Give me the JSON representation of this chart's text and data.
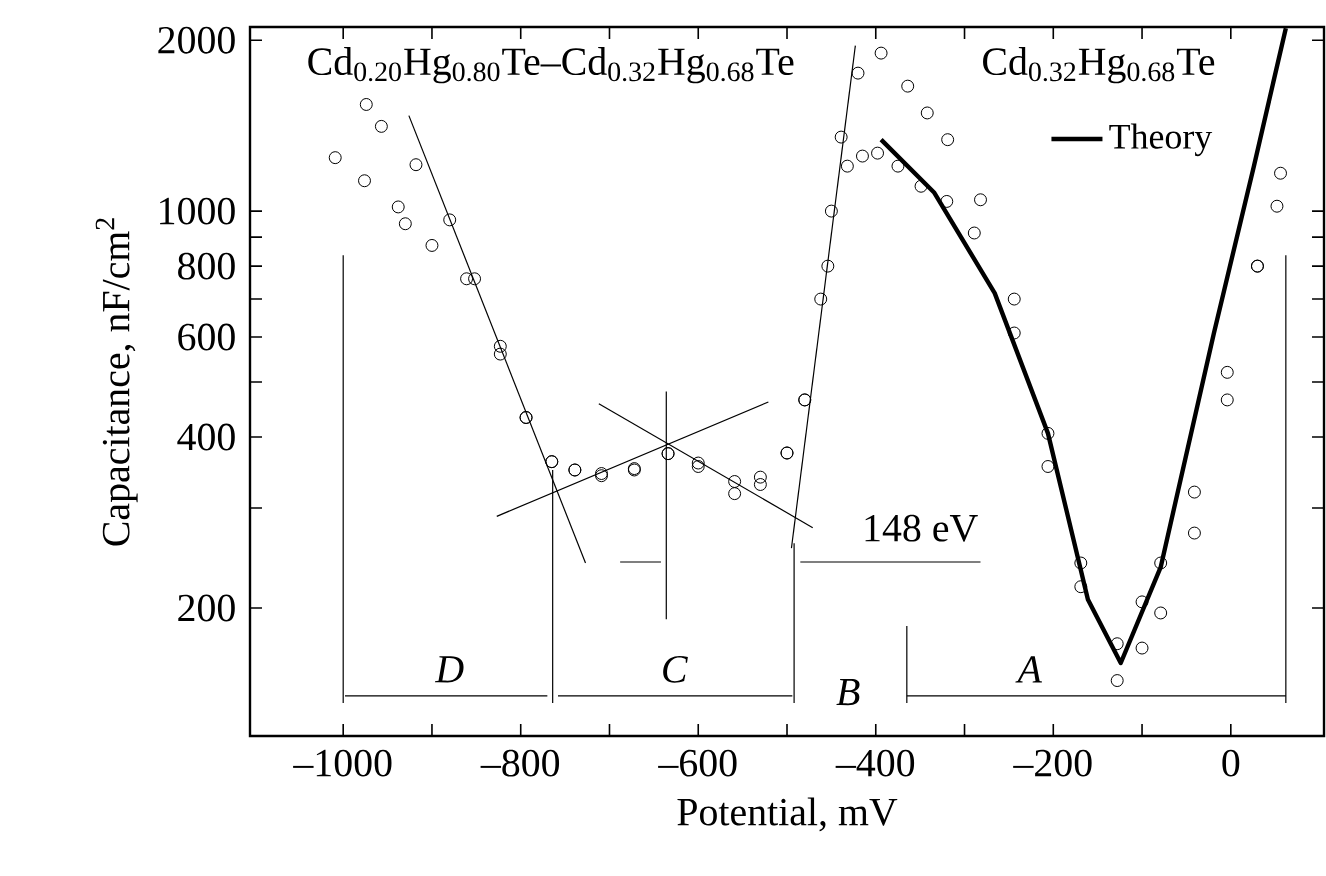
{
  "chart_data": {
    "type": "scatter",
    "xlabel": "Potential, mV",
    "ylabel": "Capacitance, nF/cm$^{2}$",
    "xlim": [
      -1105,
      105
    ],
    "ylim": [
      119,
      2110
    ],
    "log": "y",
    "xticks": [
      {
        "value": -1000,
        "label": "–1000"
      },
      {
        "value": -900,
        "label": null
      },
      {
        "value": -800,
        "label": "–800"
      },
      {
        "value": -700,
        "label": null
      },
      {
        "value": -600,
        "label": "–600"
      },
      {
        "value": -500,
        "label": null
      },
      {
        "value": -400,
        "label": "–400"
      },
      {
        "value": -300,
        "label": null
      },
      {
        "value": -200,
        "label": "–200"
      },
      {
        "value": -100,
        "label": null
      },
      0
    ],
    "yticks": [
      200,
      {
        "value": 300,
        "label": null
      },
      400,
      {
        "value": 500,
        "label": null
      },
      600,
      {
        "value": 700,
        "label": null
      },
      800,
      {
        "value": 900,
        "label": null
      },
      1000,
      2000
    ],
    "legend": "top right",
    "series": [
      {
        "marker": "circle",
        "color": "#000000",
        "x": [
          -974,
          -957,
          -918,
          -880,
          -852,
          -823,
          -794,
          -765,
          -739,
          -709,
          -672,
          -634,
          -600,
          -559,
          -530,
          -500,
          -480,
          -462,
          -450,
          -439,
          -420,
          -394,
          -364,
          -342,
          -319,
          -282,
          -244,
          -206,
          -169,
          -128,
          -100,
          -79,
          -41,
          -4,
          30,
          52
        ],
        "values": [
          1541,
          1410,
          1207,
          965,
          760,
          578,
          433,
          362,
          350,
          345,
          352,
          374,
          360,
          334,
          340,
          375,
          465,
          700,
          1000,
          1350,
          1750,
          1898,
          1660,
          1489,
          1336,
          1047,
          700,
          406,
          240,
          173,
          205,
          240,
          320,
          520,
          800,
          1020
        ]
      },
      {
        "marker": "circle",
        "color": "#000000",
        "x": [
          -1009,
          -976,
          -938,
          -930,
          -900,
          -861,
          -823,
          -794,
          -765,
          -739,
          -709,
          -672,
          -634,
          -600,
          -559,
          -530,
          -500,
          -480,
          -454,
          -432,
          -415,
          -398,
          -375,
          -349,
          -320,
          -289,
          -244,
          -206,
          -169,
          -128,
          -100,
          -79,
          -41,
          -4,
          30,
          56
        ],
        "values": [
          1242,
          1131,
          1017,
          950,
          870,
          760,
          560,
          433,
          362,
          350,
          342,
          350,
          374,
          355,
          318,
          330,
          375,
          465,
          800,
          1200,
          1250,
          1265,
          1200,
          1106,
          1040,
          915,
          610,
          355,
          218,
          149,
          170,
          196,
          271,
          465,
          800,
          1166
        ]
      },
      {
        "type": "line",
        "name": "Theory",
        "color": "#000000",
        "x": [
          -394,
          -334,
          -266,
          -206,
          -161,
          -124,
          -79,
          -19,
          26,
          62
        ],
        "values": [
          1336,
          1077,
          717,
          406,
          207,
          160,
          236,
          610,
          1200,
          2100
        ]
      },
      {
        "type": "line",
        "color": "#000000",
        "x": [
          -926,
          -727
        ],
        "values": [
          1473,
          240
        ]
      },
      {
        "type": "line",
        "color": "#000000",
        "x": [
          -827,
          -521
        ],
        "values": [
          290,
          461
        ]
      },
      {
        "type": "line",
        "color": "#000000",
        "x": [
          -712,
          -471
        ],
        "values": [
          458,
          277
        ]
      },
      {
        "type": "line",
        "color": "#000000",
        "x": [
          -636,
          -636
        ],
        "values": [
          481,
          191
        ]
      },
      {
        "type": "line",
        "color": "#000000",
        "x": [
          -423,
          -495
        ],
        "values": [
          1957,
          255
        ]
      },
      {
        "type": "line",
        "color": "#000000",
        "x": [
          -688,
          -642
        ],
        "values": [
          241,
          241
        ]
      },
      {
        "type": "line",
        "color": "#000000",
        "x": [
          -282,
          -485
        ],
        "values": [
          241,
          241
        ]
      },
      {
        "type": "line",
        "color": "#000000",
        "x": [
          -1000,
          -1000
        ],
        "values": [
          836,
          136
        ]
      },
      {
        "type": "line",
        "color": "#000000",
        "x": [
          -764,
          -764
        ],
        "values": [
          350,
          136
        ]
      },
      {
        "type": "line",
        "color": "#000000",
        "x": [
          -492,
          -492
        ],
        "values": [
          260,
          136
        ]
      },
      {
        "type": "line",
        "color": "#000000",
        "x": [
          -365,
          -365
        ],
        "values": [
          186,
          136
        ]
      },
      {
        "type": "line",
        "color": "#000000",
        "x": [
          62,
          62
        ],
        "values": [
          836,
          136
        ]
      },
      {
        "type": "line",
        "color": "#000000",
        "x": [
          -998,
          -770
        ],
        "values": [
          140,
          140
        ]
      },
      {
        "type": "line",
        "color": "#000000",
        "x": [
          -758,
          -494
        ],
        "values": [
          140,
          140
        ]
      },
      {
        "type": "line",
        "color": "#000000",
        "x": [
          -365,
          62
        ],
        "values": [
          140,
          140
        ]
      }
    ],
    "annotations": [
      "Cd$_{0.20}$Hg$_{0.80}$Te–Cd$_{0.32}$Hg$_{0.68}$Te",
      "Cd$_{0.32}$Hg$_{0.68}$Te",
      "148 eV",
      "D",
      "C",
      "B",
      "A"
    ]
  }
}
